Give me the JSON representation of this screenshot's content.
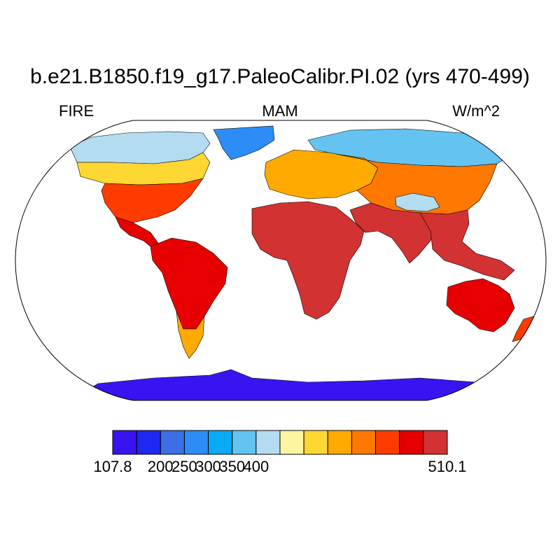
{
  "title": "b.e21.B1850.f19_g17.PaleoCalibr.PI.02 (yrs 470-499)",
  "variable": "FIRE",
  "season": "MAM",
  "units": "W/m^2",
  "colorbar": {
    "colors": [
      "#3a14f0",
      "#1e28f0",
      "#3c6ee6",
      "#2d8cf5",
      "#0aaaf5",
      "#64c3f0",
      "#b4dcf0",
      "#fff5a0",
      "#ffd732",
      "#ffaa00",
      "#ff7800",
      "#ff3c00",
      "#e60000",
      "#d23232"
    ],
    "labels": [
      {
        "text": "107.8",
        "boundary": 0
      },
      {
        "text": "200",
        "boundary": 2
      },
      {
        "text": "250",
        "boundary": 3
      },
      {
        "text": "300",
        "boundary": 4
      },
      {
        "text": "350",
        "boundary": 5
      },
      {
        "text": "400",
        "boundary": 6
      },
      {
        "text": "510.1",
        "boundary": 14
      }
    ]
  },
  "regions": [
    {
      "name": "greenland",
      "color": "#2d8cf5"
    },
    {
      "name": "canada-arctic",
      "color": "#b4dcf0"
    },
    {
      "name": "north-america-mid",
      "color": "#ffd732"
    },
    {
      "name": "north-america-south",
      "color": "#ff3c00"
    },
    {
      "name": "central-america",
      "color": "#e60000"
    },
    {
      "name": "south-america",
      "color": "#e60000"
    },
    {
      "name": "patagonia",
      "color": "#ffaa00"
    },
    {
      "name": "europe",
      "color": "#ffaa00"
    },
    {
      "name": "siberia",
      "color": "#64c3f0"
    },
    {
      "name": "asia-mid",
      "color": "#ff7800"
    },
    {
      "name": "tibet",
      "color": "#b4dcf0"
    },
    {
      "name": "africa",
      "color": "#d23232"
    },
    {
      "name": "arabia-india",
      "color": "#d23232"
    },
    {
      "name": "southeast-asia",
      "color": "#d23232"
    },
    {
      "name": "australia",
      "color": "#e60000"
    },
    {
      "name": "new-zealand",
      "color": "#ff3c00"
    },
    {
      "name": "antarctica",
      "color": "#3a14f0"
    }
  ]
}
